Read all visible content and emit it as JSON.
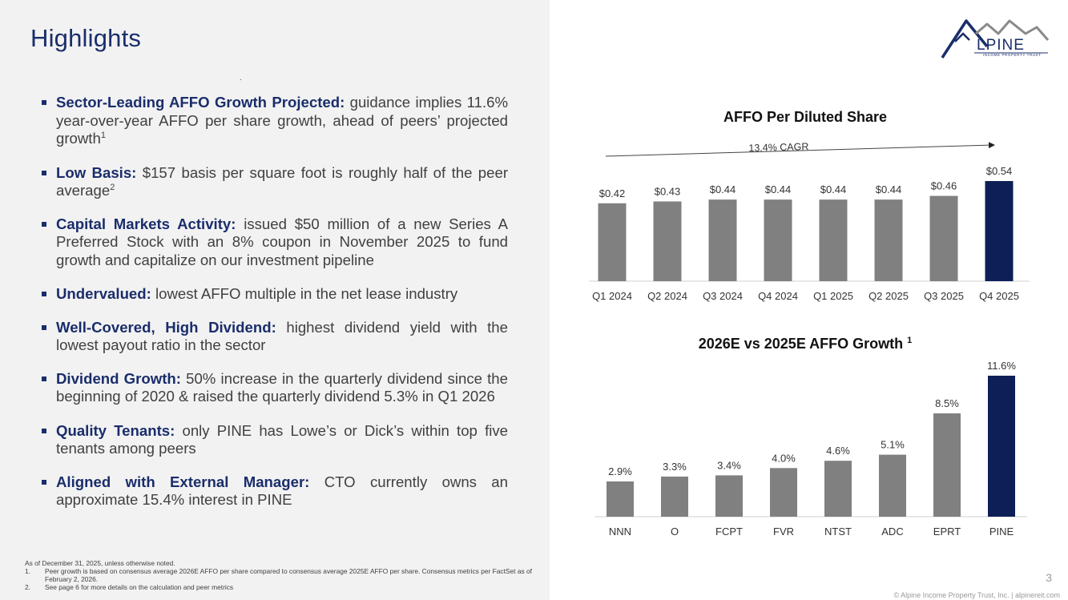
{
  "page": {
    "title": "Highlights",
    "page_number": "3",
    "copyright": "© Alpine Income Property Trust, Inc.  |  alpinereit.com"
  },
  "logo": {
    "name": "LPINE",
    "subtitle": "INCOME PROPERTY TRUST"
  },
  "bullets": [
    {
      "head": "Sector-Leading AFFO Growth Projected:",
      "text": " guidance implies 11.6% year-over-year AFFO per share growth, ahead of peers’ projected growth",
      "sup": "1"
    },
    {
      "head": "Low Basis:",
      "text": " $157 basis per square foot is roughly half of the peer average",
      "sup": "2"
    },
    {
      "head": "Capital Markets Activity:",
      "text": "  issued $50 million of a new Series A Preferred Stock with an 8% coupon in November 2025 to fund growth and capitalize on our investment pipeline",
      "sup": ""
    },
    {
      "head": "Undervalued:",
      "text": " lowest AFFO multiple in the net lease industry",
      "sup": ""
    },
    {
      "head": "Well-Covered, High Dividend:",
      "text": " highest dividend yield with the lowest payout ratio in the sector",
      "sup": ""
    },
    {
      "head": "Dividend Growth:",
      "text": " 50% increase in the quarterly dividend since the beginning of 2020 & raised the quarterly dividend 5.3% in Q1 2026",
      "sup": ""
    },
    {
      "head": "Quality Tenants:",
      "text": " only PINE has Lowe’s or Dick’s within top five tenants among peers",
      "sup": ""
    },
    {
      "head": "Aligned with External Manager:",
      "text": " CTO currently owns an approximate 15.4% interest in PINE",
      "sup": ""
    }
  ],
  "footnotes": {
    "intro": "As of December 31, 2025, unless otherwise noted.",
    "items": [
      {
        "num": "1.",
        "text": "Peer growth is based on consensus average 2026E AFFO per share compared to consensus average 2025E AFFO per share. Consensus metrics per FactSet as of February 2, 2026."
      },
      {
        "num": "2.",
        "text": "See page 6 for more details on the calculation and peer metrics"
      }
    ]
  },
  "colors": {
    "navy": "#0e1f57",
    "gray_bar": "#808080",
    "title_blue": "#1a2d6b"
  },
  "chart_data": [
    {
      "type": "bar",
      "title": "AFFO Per Diluted Share",
      "categories": [
        "Q1 2024",
        "Q2 2024",
        "Q3 2024",
        "Q4 2024",
        "Q1 2025",
        "Q2 2025",
        "Q3 2025",
        "Q4 2025"
      ],
      "values": [
        0.42,
        0.43,
        0.44,
        0.44,
        0.44,
        0.44,
        0.46,
        0.54
      ],
      "labels": [
        "$0.42",
        "$0.43",
        "$0.44",
        "$0.44",
        "$0.44",
        "$0.44",
        "$0.46",
        "$0.54"
      ],
      "highlight": "Q4 2025",
      "annotation": "13.4% CAGR",
      "ylim": [
        0,
        0.54
      ]
    },
    {
      "type": "bar",
      "title": "2026E vs 2025E AFFO Growth",
      "title_sup": "1",
      "categories": [
        "NNN",
        "O",
        "FCPT",
        "FVR",
        "NTST",
        "ADC",
        "EPRT",
        "PINE"
      ],
      "values": [
        2.9,
        3.3,
        3.4,
        4.0,
        4.6,
        5.1,
        8.5,
        11.6
      ],
      "labels": [
        "2.9%",
        "3.3%",
        "3.4%",
        "4.0%",
        "4.6%",
        "5.1%",
        "8.5%",
        "11.6%"
      ],
      "highlight": "PINE",
      "ylim": [
        0,
        11.6
      ]
    }
  ]
}
